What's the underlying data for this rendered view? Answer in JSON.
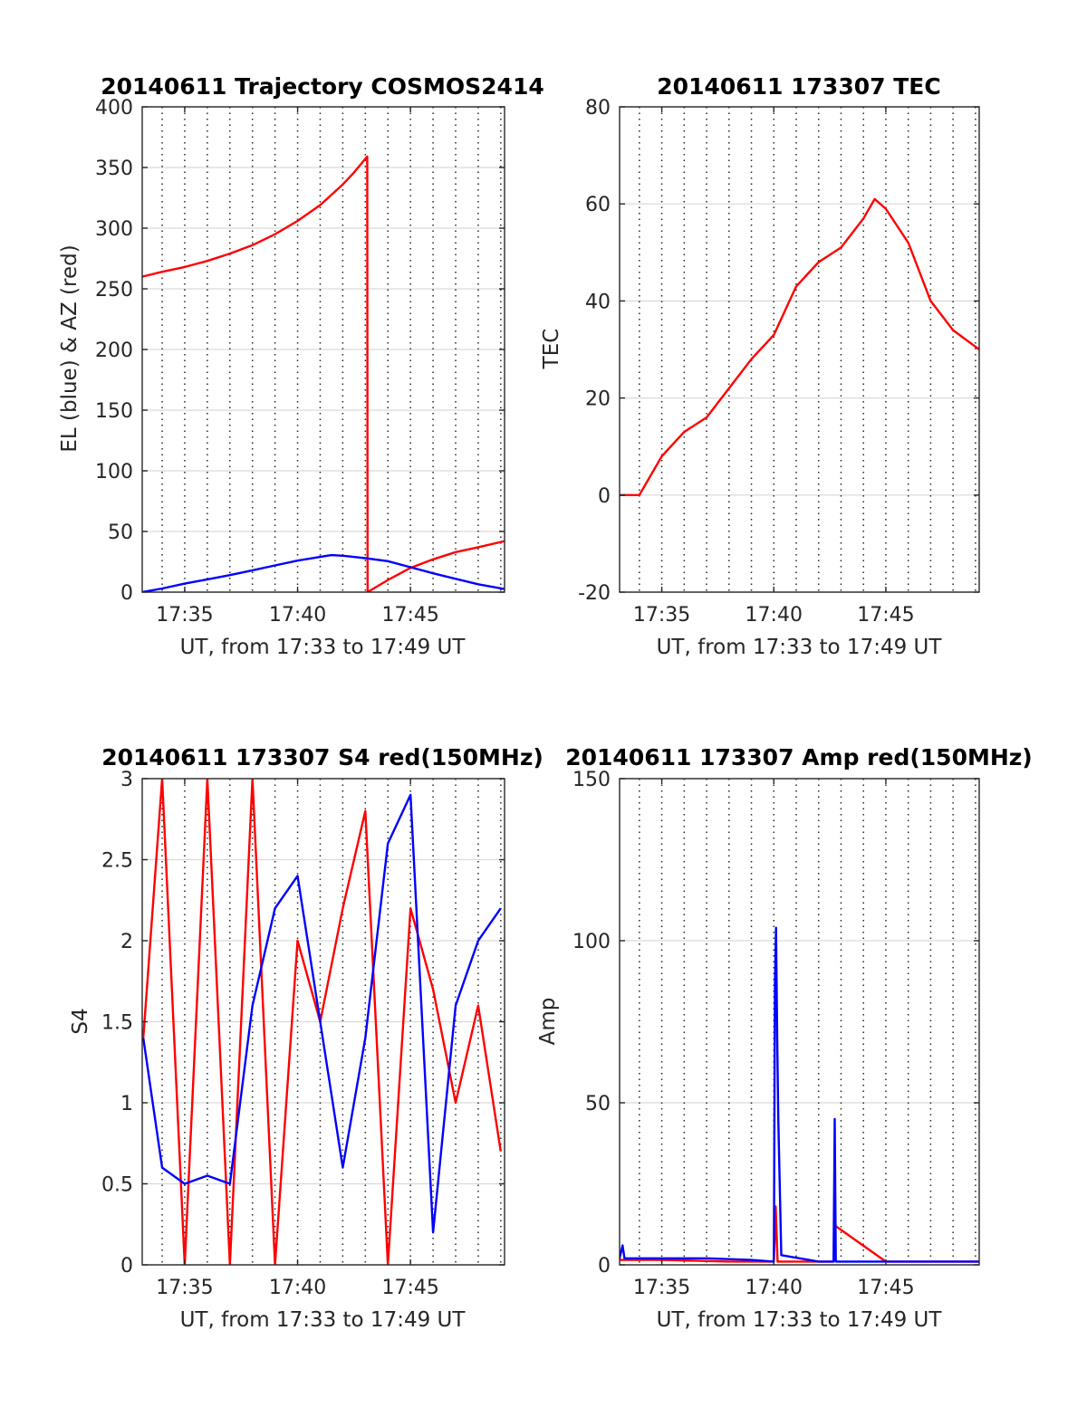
{
  "figure": {
    "background": "#ffffff",
    "grid_color": "#d9d9d9",
    "vgrid_color": "#262626"
  },
  "chart_data": [
    {
      "type": "line",
      "title": "20140611 Trajectory COSMOS2414",
      "xlabel": "UT, from 17:33 to 17:49 UT",
      "ylabel": "EL (blue) & AZ (red)",
      "xlim": [
        "17:33:07",
        "17:49:10"
      ],
      "ylim": [
        0,
        400
      ],
      "yticks": [
        0,
        50,
        100,
        150,
        200,
        250,
        300,
        350,
        400
      ],
      "ytick_labels": [
        "0",
        "50",
        "100",
        "150",
        "200",
        "250",
        "300",
        "350",
        "400"
      ],
      "xticks": [
        "17:35",
        "17:40",
        "17:45"
      ],
      "grid": true,
      "series": [
        {
          "color": "#ff0000",
          "kind": "azimuth",
          "x": [
            "17:33:07",
            "17:34:00",
            "17:35:00",
            "17:36:00",
            "17:37:00",
            "17:38:00",
            "17:39:00",
            "17:40:00",
            "17:41:00",
            "17:42:00",
            "17:42:30",
            "17:43:05",
            "17:43:06",
            "17:44:00",
            "17:45:00",
            "17:46:00",
            "17:47:00",
            "17:48:00",
            "17:49:10"
          ],
          "values": [
            260,
            264,
            268,
            273,
            279,
            286,
            295,
            306,
            319,
            336,
            346,
            359,
            0,
            10,
            20,
            27,
            33,
            37,
            42
          ]
        },
        {
          "color": "#0000ff",
          "kind": "elevation",
          "x": [
            "17:33:07",
            "17:34:00",
            "17:35:00",
            "17:36:00",
            "17:37:00",
            "17:38:00",
            "17:39:00",
            "17:40:00",
            "17:41:00",
            "17:41:30",
            "17:42:00",
            "17:43:00",
            "17:44:00",
            "17:45:00",
            "17:46:00",
            "17:47:00",
            "17:48:00",
            "17:49:10"
          ],
          "values": [
            0,
            3,
            7,
            10.5,
            14,
            18,
            22,
            26,
            29,
            30.5,
            30,
            28,
            25.5,
            20.5,
            15.5,
            11,
            6.5,
            2.5
          ]
        }
      ]
    },
    {
      "type": "line",
      "title": "20140611 173307 TEC",
      "xlabel": "UT, from 17:33 to 17:49 UT",
      "ylabel": "TEC",
      "xlim": [
        "17:33:07",
        "17:49:10"
      ],
      "ylim": [
        -20,
        80
      ],
      "yticks": [
        -20,
        0,
        20,
        40,
        60,
        80
      ],
      "ytick_labels": [
        "-20",
        "0",
        "20",
        "40",
        "60",
        "80"
      ],
      "xticks": [
        "17:35",
        "17:40",
        "17:45"
      ],
      "grid": true,
      "series": [
        {
          "color": "#ff0000",
          "x": [
            "17:33:07",
            "17:34:00",
            "17:35:00",
            "17:36:00",
            "17:37:00",
            "17:38:00",
            "17:39:00",
            "17:40:00",
            "17:41:00",
            "17:42:00",
            "17:43:00",
            "17:44:00",
            "17:44:30",
            "17:45:00",
            "17:46:00",
            "17:47:00",
            "17:48:00",
            "17:49:10"
          ],
          "values": [
            0,
            0,
            8,
            13,
            16,
            22,
            28,
            33,
            43,
            48,
            51,
            57,
            61,
            59,
            52,
            40,
            34,
            30
          ]
        }
      ]
    },
    {
      "type": "line",
      "title": "20140611 173307 S4 red(150MHz)",
      "xlabel": "UT, from 17:33 to 17:49 UT",
      "ylabel": "S4",
      "xlim": [
        "17:33:07",
        "17:49:10"
      ],
      "ylim": [
        0,
        3
      ],
      "yticks": [
        0,
        0.5,
        1,
        1.5,
        2,
        2.5,
        3
      ],
      "ytick_labels": [
        "0",
        "0.5",
        "1",
        "1.5",
        "2",
        "2.5",
        "3"
      ],
      "xticks": [
        "17:35",
        "17:40",
        "17:45"
      ],
      "grid": true,
      "series": [
        {
          "color": "#ff0000",
          "x": [
            "17:33:10",
            "17:34:00",
            "17:35:00",
            "17:36:00",
            "17:37:00",
            "17:38:00",
            "17:39:00",
            "17:40:00",
            "17:41:00",
            "17:42:00",
            "17:43:00",
            "17:44:00",
            "17:45:00",
            "17:46:00",
            "17:47:00",
            "17:48:00",
            "17:49:00"
          ],
          "values": [
            1.4,
            3,
            0,
            3,
            0,
            3,
            0,
            2.0,
            1.5,
            2.2,
            2.8,
            0,
            2.2,
            1.7,
            1.0,
            1.6,
            0.7
          ]
        },
        {
          "color": "#0000ff",
          "x": [
            "17:33:10",
            "17:34:00",
            "17:35:00",
            "17:36:00",
            "17:37:00",
            "17:38:00",
            "17:39:00",
            "17:40:00",
            "17:41:00",
            "17:42:00",
            "17:43:00",
            "17:44:00",
            "17:45:00",
            "17:46:00",
            "17:47:00",
            "17:48:00",
            "17:49:00"
          ],
          "values": [
            1.4,
            0.6,
            0.5,
            0.55,
            0.5,
            1.6,
            2.2,
            2.4,
            1.5,
            0.6,
            1.4,
            2.6,
            2.9,
            0.2,
            1.6,
            2.0,
            2.2
          ]
        }
      ]
    },
    {
      "type": "line",
      "title": "20140611 173307 Amp red(150MHz)",
      "xlabel": "UT, from 17:33 to 17:49 UT",
      "ylabel": "Amp",
      "xlim": [
        "17:33:07",
        "17:49:10"
      ],
      "ylim": [
        0,
        150
      ],
      "yticks": [
        0,
        50,
        100,
        150
      ],
      "ytick_labels": [
        "0",
        "50",
        "100",
        "150"
      ],
      "xticks": [
        "17:35",
        "17:40",
        "17:45"
      ],
      "grid": true,
      "series": [
        {
          "color": "#ff0000",
          "x": [
            "17:33:07",
            "17:35:00",
            "17:38:00",
            "17:40:00",
            "17:40:05",
            "17:40:10",
            "17:42:00",
            "17:42:40",
            "17:42:45",
            "17:45:00",
            "17:49:10"
          ],
          "values": [
            1.5,
            1.5,
            1,
            1,
            18,
            1,
            1,
            1,
            12,
            1,
            1
          ]
        },
        {
          "color": "#0000ff",
          "x": [
            "17:33:07",
            "17:33:15",
            "17:33:20",
            "17:35:00",
            "17:37:00",
            "17:39:00",
            "17:40:00",
            "17:40:03",
            "17:40:06",
            "17:40:09",
            "17:40:12",
            "17:40:20",
            "17:42:00",
            "17:42:40",
            "17:42:43",
            "17:42:46",
            "17:45:00",
            "17:47:00",
            "17:49:10"
          ],
          "values": [
            2,
            6,
            2,
            2,
            2,
            1.5,
            1,
            87,
            104,
            70,
            45,
            3,
            1,
            1,
            45,
            1,
            1,
            1,
            1
          ]
        }
      ]
    }
  ]
}
